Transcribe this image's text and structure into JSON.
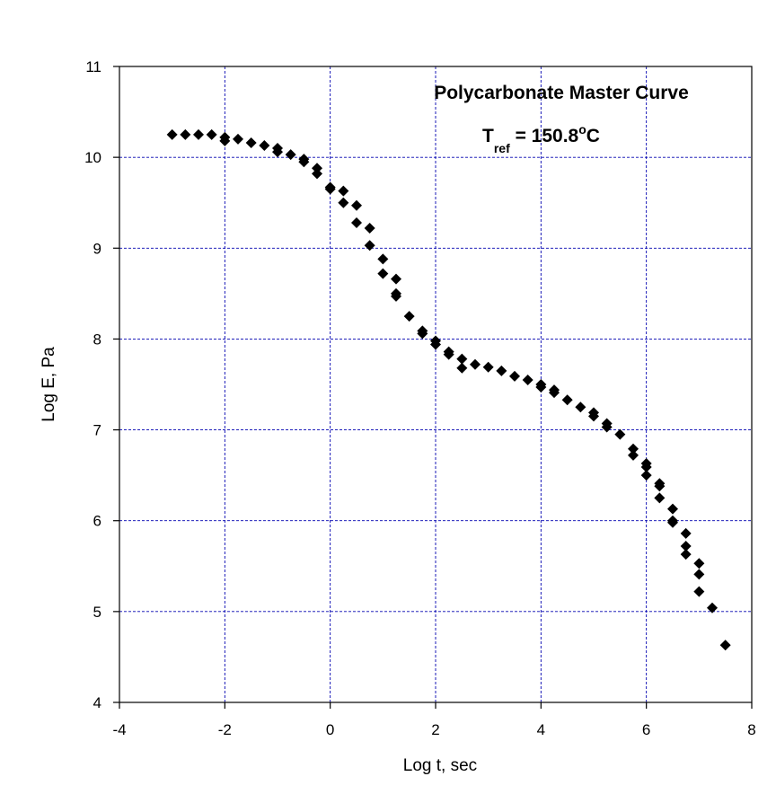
{
  "chart_data": {
    "type": "scatter",
    "title_line1": "Polycarbonate Master Curve",
    "title_line2_prefix": "T",
    "title_line2_sub": "ref",
    "title_line2_value": " = 150.8",
    "title_line2_sup": "o",
    "title_line2_unit": "C",
    "xlabel": "Log t, sec",
    "ylabel": "Log E, Pa",
    "xlim": [
      -4,
      8
    ],
    "ylim": [
      4,
      11
    ],
    "xticks": [
      -4,
      -2,
      0,
      2,
      4,
      6,
      8
    ],
    "yticks": [
      4,
      5,
      6,
      7,
      8,
      9,
      10,
      11
    ],
    "xtick_labels": [
      "-4",
      "-2",
      "0",
      "2",
      "4",
      "6",
      "8"
    ],
    "ytick_labels": [
      "4",
      "5",
      "6",
      "7",
      "8",
      "9",
      "10",
      "11"
    ],
    "grid": true,
    "marker": "diamond",
    "marker_color": "#000000",
    "grid_color": "#0000b0",
    "points": [
      [
        -3.0,
        10.25
      ],
      [
        -2.75,
        10.25
      ],
      [
        -2.5,
        10.25
      ],
      [
        -2.25,
        10.25
      ],
      [
        -2.0,
        10.22
      ],
      [
        -2.0,
        10.18
      ],
      [
        -1.75,
        10.2
      ],
      [
        -1.5,
        10.16
      ],
      [
        -1.25,
        10.13
      ],
      [
        -1.0,
        10.1
      ],
      [
        -1.0,
        10.06
      ],
      [
        -0.75,
        10.03
      ],
      [
        -0.5,
        9.98
      ],
      [
        -0.5,
        9.95
      ],
      [
        -0.25,
        9.88
      ],
      [
        -0.25,
        9.82
      ],
      [
        0.0,
        9.67
      ],
      [
        0.0,
        9.65
      ],
      [
        0.25,
        9.63
      ],
      [
        0.25,
        9.5
      ],
      [
        0.5,
        9.47
      ],
      [
        0.5,
        9.28
      ],
      [
        0.75,
        9.22
      ],
      [
        0.75,
        9.03
      ],
      [
        1.0,
        8.88
      ],
      [
        1.0,
        8.72
      ],
      [
        1.25,
        8.66
      ],
      [
        1.25,
        8.5
      ],
      [
        1.25,
        8.47
      ],
      [
        1.5,
        8.25
      ],
      [
        1.75,
        8.09
      ],
      [
        1.75,
        8.06
      ],
      [
        2.0,
        7.98
      ],
      [
        2.0,
        7.94
      ],
      [
        2.25,
        7.86
      ],
      [
        2.25,
        7.83
      ],
      [
        2.5,
        7.78
      ],
      [
        2.5,
        7.68
      ],
      [
        2.75,
        7.72
      ],
      [
        3.0,
        7.69
      ],
      [
        3.25,
        7.65
      ],
      [
        3.5,
        7.59
      ],
      [
        3.75,
        7.55
      ],
      [
        4.0,
        7.5
      ],
      [
        4.0,
        7.47
      ],
      [
        4.25,
        7.44
      ],
      [
        4.25,
        7.41
      ],
      [
        4.5,
        7.33
      ],
      [
        4.75,
        7.25
      ],
      [
        5.0,
        7.19
      ],
      [
        5.0,
        7.15
      ],
      [
        5.25,
        7.07
      ],
      [
        5.25,
        7.03
      ],
      [
        5.5,
        6.95
      ],
      [
        5.75,
        6.79
      ],
      [
        5.75,
        6.72
      ],
      [
        6.0,
        6.63
      ],
      [
        6.0,
        6.59
      ],
      [
        6.0,
        6.5
      ],
      [
        6.25,
        6.41
      ],
      [
        6.25,
        6.38
      ],
      [
        6.25,
        6.25
      ],
      [
        6.5,
        6.13
      ],
      [
        6.5,
        6.0
      ],
      [
        6.5,
        5.98
      ],
      [
        6.75,
        5.86
      ],
      [
        6.75,
        5.72
      ],
      [
        6.75,
        5.63
      ],
      [
        7.0,
        5.53
      ],
      [
        7.0,
        5.41
      ],
      [
        7.0,
        5.22
      ],
      [
        7.25,
        5.04
      ],
      [
        7.5,
        4.63
      ]
    ]
  }
}
